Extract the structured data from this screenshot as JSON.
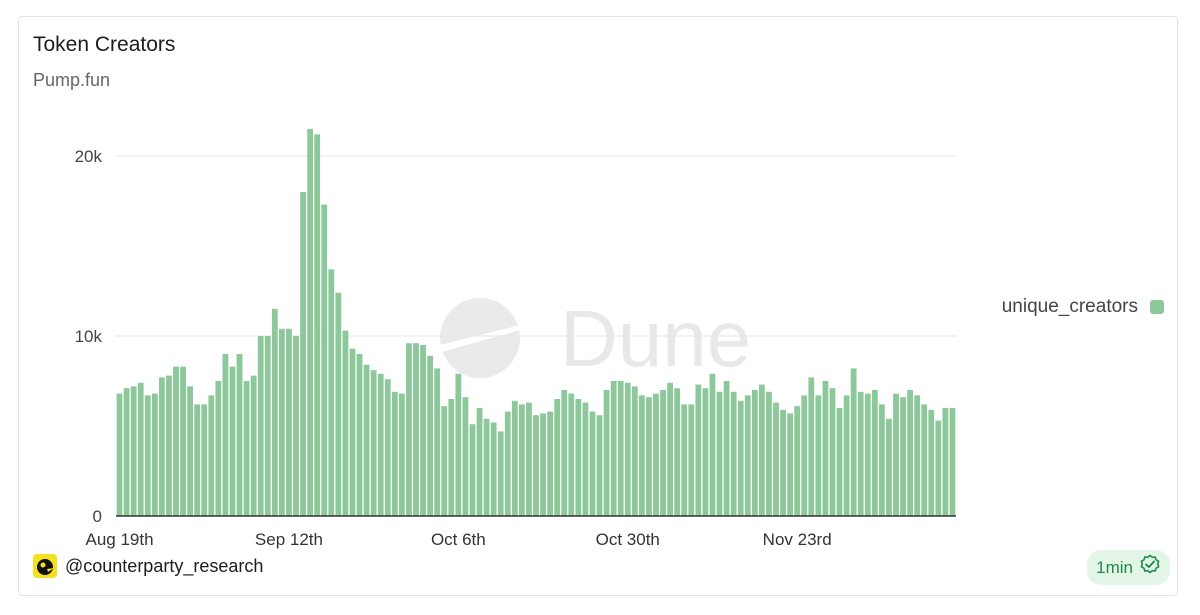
{
  "header": {
    "title": "Token Creators",
    "subtitle": "Pump.fun"
  },
  "legend": {
    "label": "unique_creators",
    "color": "#8cc89a"
  },
  "footer": {
    "author": "@counterparty_research",
    "refresh": "1min"
  },
  "watermark": {
    "text": "Dune"
  },
  "colors": {
    "bar": "#8cc89a",
    "grid": "#e6e6e6",
    "badge_text": "#1f8a4c"
  },
  "icons": {
    "author": "duck-avatar-icon",
    "refresh": "verified-check-icon"
  },
  "chart_data": {
    "type": "bar",
    "title": "Token Creators",
    "subtitle": "Pump.fun",
    "xlabel": "",
    "ylabel": "",
    "ylim": [
      0,
      22000
    ],
    "yticks": [
      0,
      10000,
      20000
    ],
    "ytick_labels": [
      "0",
      "10k",
      "20k"
    ],
    "xtick_labels": [
      "Aug 19th",
      "Sep 12th",
      "Oct 6th",
      "Oct 30th",
      "Nov 23rd"
    ],
    "xtick_indices": [
      0,
      24,
      48,
      72,
      96
    ],
    "grid": true,
    "legend_position": "right",
    "series": [
      {
        "name": "unique_creators",
        "color": "#8cc89a",
        "values": [
          6800,
          7100,
          7200,
          7400,
          6700,
          6800,
          7700,
          7800,
          8300,
          8300,
          7200,
          6200,
          6200,
          6700,
          7500,
          9000,
          8300,
          9000,
          7500,
          7800,
          10000,
          10000,
          11500,
          10400,
          10400,
          10000,
          18000,
          21500,
          21200,
          17300,
          13700,
          12400,
          10300,
          9300,
          9000,
          8400,
          8100,
          7900,
          7600,
          6900,
          6800,
          9600,
          9600,
          9500,
          8900,
          8200,
          6100,
          6500,
          7900,
          6600,
          5100,
          6000,
          5400,
          5200,
          4700,
          5800,
          6400,
          6200,
          6300,
          5600,
          5700,
          5800,
          6500,
          7000,
          6800,
          6500,
          6300,
          5800,
          5600,
          7000,
          7500,
          7500,
          7400,
          7200,
          6700,
          6600,
          6800,
          7000,
          7400,
          7100,
          6200,
          6200,
          7300,
          7100,
          7900,
          6900,
          7500,
          6900,
          6400,
          6700,
          7000,
          7300,
          6900,
          6300,
          5900,
          5700,
          6100,
          6700,
          7700,
          6700,
          7500,
          7100,
          6000,
          6700,
          8200,
          6900,
          6800,
          7000,
          6200,
          5400,
          6800,
          6600,
          7000,
          6700,
          6200,
          5900,
          5300,
          6000,
          6000
        ]
      }
    ]
  }
}
